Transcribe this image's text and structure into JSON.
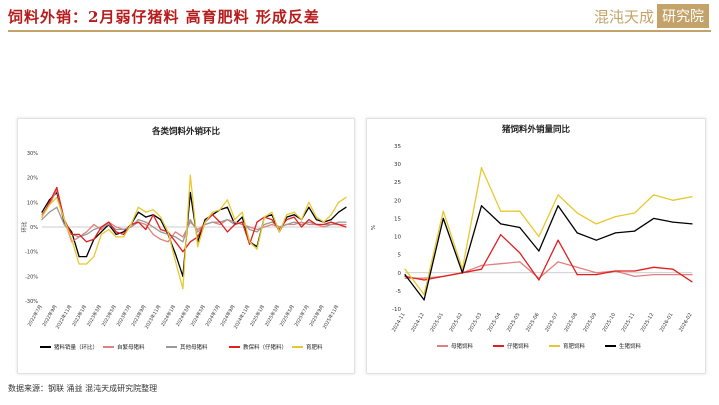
{
  "header": {
    "title": "饲料外销：2月弱仔猪料 高育肥料 形成反差",
    "logo_text": "混沌天成",
    "logo_badge": "研究院"
  },
  "footer": {
    "source": "数据来源：钢联 涌益 混沌天成研究院整理"
  },
  "colors": {
    "accent": "#c4a36a",
    "title": "#b71c1c",
    "black": "#000000",
    "pink": "#e08080",
    "red": "#e02020",
    "yellow": "#e8c832",
    "gray": "#9a9a9a",
    "dark_red": "#8b1a1a"
  },
  "chart_data": [
    {
      "id": "left",
      "type": "line",
      "title": "各类饲料外销环比",
      "ylabel": "环比",
      "ylim": [
        -30,
        30
      ],
      "yticks": [
        -30,
        -20,
        -10,
        0,
        10,
        20,
        30
      ],
      "ytick_suffix": "%",
      "x": [
        "2022年7月",
        "2022年8月",
        "2022年9月",
        "2022年10月",
        "2022年11月",
        "2022年12月",
        "2023年1月",
        "2023年2月",
        "2023年3月",
        "2023年4月",
        "2023年5月",
        "2023年6月",
        "2023年7月",
        "2023年8月",
        "2023年9月",
        "2023年10月",
        "2023年11月",
        "2023年12月",
        "2024年1月",
        "2024年2月",
        "2024年3月",
        "2024年4月",
        "2024年5月",
        "2024年6月",
        "2024年7月",
        "2024年8月",
        "2024年9月",
        "2024年10月",
        "2024年11月",
        "2024年12月",
        "2025年1月",
        "2025年2月",
        "2025年3月",
        "2025年4月",
        "2025年5月",
        "2025年6月",
        "2025年7月",
        "2025年8月",
        "2025年9月",
        "2025年10月",
        "2025年11月",
        "2025年12月"
      ],
      "xtick_labels": [
        "2022年7月",
        "2022年9月",
        "2022年11月",
        "2023年1月",
        "2023年3月",
        "2023年5月",
        "2023年7月",
        "2023年9月",
        "2023年11月",
        "2024年1月",
        "2024年3月",
        "2024年5月",
        "2024年7月",
        "2024年9月",
        "2024年11月",
        "2025年1月",
        "2025年3月",
        "2025年5月",
        "2025年7月",
        "2025年9月",
        "2025年11月"
      ],
      "legend_position": "bottom",
      "series": [
        {
          "name": "猪料销量（环比）",
          "color": "#000000",
          "values": [
            6,
            11,
            14,
            2,
            -2,
            -12,
            -12,
            -5,
            -2,
            1,
            -3,
            -2,
            1,
            6,
            4,
            5,
            3,
            -3,
            -11,
            -20,
            14,
            -6,
            3,
            5,
            7,
            8,
            1,
            4,
            -6,
            -8,
            4,
            5,
            -2,
            4,
            5,
            3,
            8,
            3,
            2,
            3,
            6,
            8
          ]
        },
        {
          "name": "自繁母猪料",
          "color": "#e08080",
          "values": [
            5,
            9,
            15,
            3,
            -6,
            -4,
            -2,
            1,
            -1,
            2,
            0,
            -1,
            0,
            2,
            1,
            -3,
            -5,
            -6,
            -2,
            -4,
            2,
            -1,
            1,
            2,
            1,
            3,
            2,
            1,
            0,
            -1,
            0,
            1,
            0,
            1,
            1,
            2,
            1,
            1,
            0,
            1,
            1,
            1
          ]
        },
        {
          "name": "其他母猪料",
          "color": "#9a9a9a",
          "values": [
            3,
            6,
            8,
            1,
            -3,
            -4,
            -3,
            -1,
            0,
            1,
            -1,
            -1,
            0,
            3,
            2,
            0,
            -2,
            -3,
            -4,
            -6,
            3,
            -2,
            1,
            2,
            2,
            3,
            1,
            2,
            -1,
            -2,
            1,
            2,
            0,
            1,
            2,
            1,
            2,
            1,
            1,
            1,
            2,
            2
          ]
        },
        {
          "name": "教保料（仔猪料）",
          "color": "#e02020",
          "values": [
            4,
            10,
            16,
            3,
            -3,
            -3,
            -6,
            -5,
            0,
            2,
            -2,
            -3,
            1,
            2,
            -1,
            5,
            -1,
            -2,
            -6,
            -10,
            -6,
            -4,
            2,
            5,
            2,
            -2,
            1,
            2,
            -7,
            2,
            4,
            3,
            -1,
            3,
            4,
            0,
            3,
            1,
            1,
            2,
            1,
            0
          ]
        },
        {
          "name": "育肥料",
          "color": "#e8c832",
          "values": [
            4,
            9,
            12,
            3,
            -5,
            -15,
            -15,
            -12,
            -3,
            -1,
            -4,
            -4,
            1,
            8,
            6,
            7,
            4,
            -2,
            -14,
            -25,
            21,
            -8,
            2,
            6,
            7,
            11,
            3,
            6,
            -6,
            -9,
            4,
            6,
            -2,
            5,
            6,
            3,
            10,
            4,
            2,
            5,
            10,
            12
          ]
        }
      ]
    },
    {
      "id": "right",
      "type": "line",
      "title": "猪饲料外销量同比",
      "ylabel": "%",
      "ylim": [
        -10,
        35
      ],
      "yticks": [
        -10,
        -5,
        0,
        5,
        10,
        15,
        20,
        25,
        30,
        35
      ],
      "x": [
        "2024-11",
        "2024-12",
        "2025-01",
        "2025-02",
        "2025-03",
        "2025-04",
        "2025-05",
        "2025-06",
        "2025-07",
        "2025-08",
        "2025-09",
        "2025-10",
        "2025-11",
        "2025-12",
        "2026-01",
        "2026-02"
      ],
      "legend_position": "bottom",
      "series": [
        {
          "name": "母猪饲料",
          "color": "#e08080",
          "values": [
            -1.5,
            -1.5,
            -1,
            0,
            2,
            2.5,
            3,
            -1.5,
            3,
            1.5,
            0,
            0.5,
            -1,
            -0.5,
            -0.5,
            -0.5
          ]
        },
        {
          "name": "仔猪饲料",
          "color": "#e02020",
          "values": [
            -1,
            -2,
            -1,
            0,
            1,
            10.5,
            5.5,
            -2,
            9,
            -0.5,
            -0.5,
            0.5,
            0.5,
            1.5,
            1,
            -2.5
          ]
        },
        {
          "name": "育肥饲料",
          "color": "#e8c832",
          "values": [
            1,
            -6,
            17,
            1,
            29,
            17,
            17,
            10,
            21.5,
            16.5,
            13.5,
            15.5,
            16.5,
            21.5,
            20,
            21
          ]
        },
        {
          "name": "生猪饲料",
          "color": "#000000",
          "values": [
            -0.5,
            -7.5,
            15,
            0,
            18.5,
            13.5,
            12.5,
            6,
            18.5,
            11,
            9,
            11,
            11.5,
            15,
            14,
            13.5
          ]
        }
      ]
    }
  ]
}
